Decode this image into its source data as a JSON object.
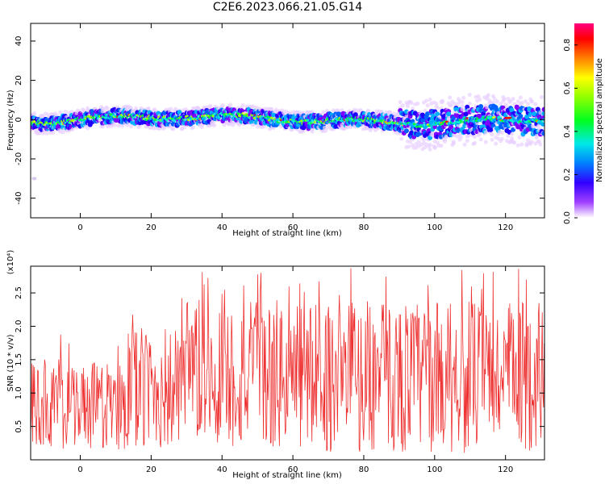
{
  "figure_title": "C2E6.2023.066.21.05.G14",
  "chart_data": [
    {
      "type": "heatmap",
      "title": "",
      "xlabel": "Height of straight line (km)",
      "ylabel": "Frequency (Hz)",
      "xlim": [
        -14,
        131
      ],
      "ylim": [
        -50,
        49
      ],
      "xticks": [
        0,
        20,
        40,
        60,
        80,
        100,
        120
      ],
      "yticks": [
        -40,
        -20,
        0,
        20,
        40
      ],
      "colorbar": {
        "label": "Normalized spectral amplitude",
        "range": [
          0,
          0.9
        ],
        "ticks": [
          "0.0",
          "0.2",
          "0.4",
          "0.6",
          "0.8"
        ],
        "colormap": "rainbow (white-violet-blue-cyan-green-yellow-red-magenta)"
      },
      "description_values": {
        "band_center_hz": 0,
        "band_halfwidth_hz_low_height": 4,
        "band_halfwidth_hz_high_height": 8,
        "stray_point": {
          "x": -13,
          "y": -30
        }
      }
    },
    {
      "type": "line",
      "title": "",
      "xlabel": "Height of straight line (km)",
      "ylabel": "SNR (10 * v/v)",
      "y_multiplier": "(x10⁴)",
      "xlim": [
        -14,
        131
      ],
      "ylim": [
        0,
        2.9
      ],
      "xticks": [
        0,
        20,
        40,
        60,
        80,
        100,
        120
      ],
      "yticks": [
        "0.5",
        "1.0",
        "1.5",
        "2.0",
        "2.5"
      ],
      "series": [
        {
          "color": "#ee3030"
        }
      ]
    }
  ],
  "colors": {
    "snr_line": "#ee3030",
    "axes": "#000000"
  }
}
